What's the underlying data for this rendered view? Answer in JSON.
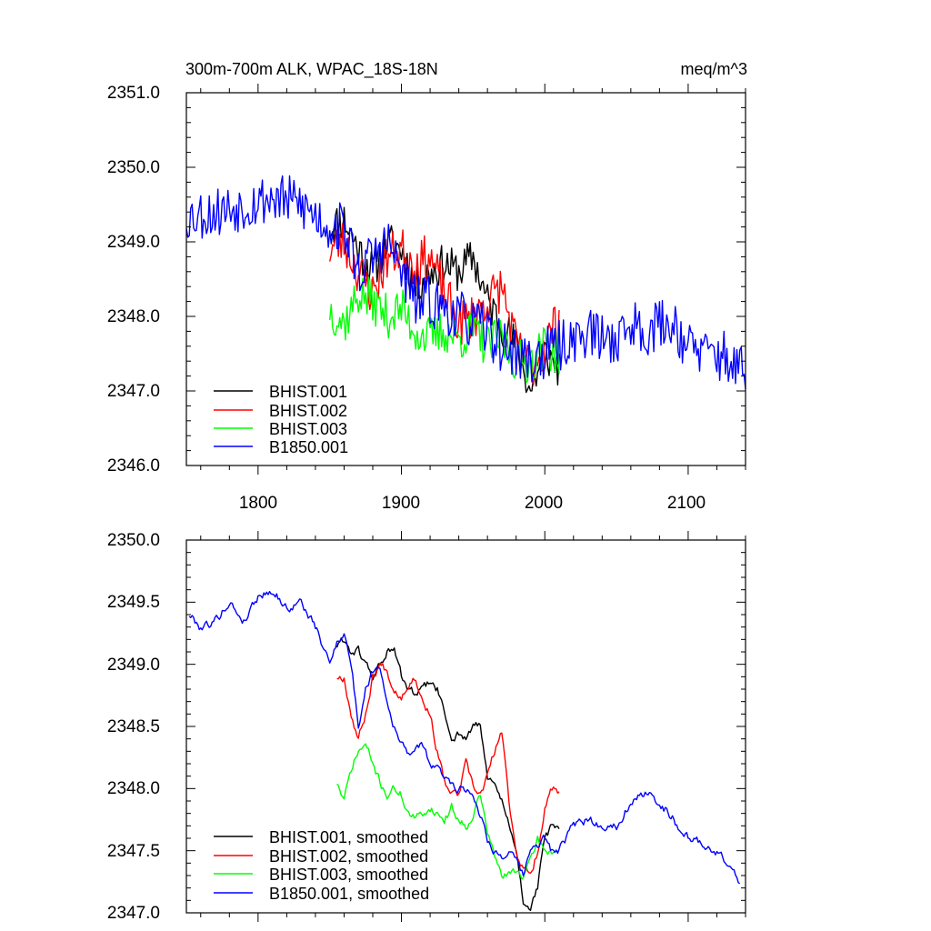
{
  "colors": {
    "black": "#000000",
    "red": "#ff0000",
    "green": "#00ff00",
    "blue": "#0000ff"
  },
  "chart_data": [
    {
      "type": "line",
      "title": "300m-700m ALK, WPAC_18S-18N",
      "units": "meq/m^3",
      "xlim": [
        1750,
        2140
      ],
      "ylim": [
        2346.0,
        2351.0
      ],
      "xticks": [
        1800,
        1900,
        2000,
        2100
      ],
      "xtick_labels": [
        "1800",
        "1900",
        "2000",
        "2100"
      ],
      "yticks": [
        2346.0,
        2347.0,
        2348.0,
        2349.0,
        2350.0,
        2351.0
      ],
      "ytick_labels": [
        "2346.0",
        "2347.0",
        "2348.0",
        "2349.0",
        "2350.0",
        "2351.0"
      ],
      "legend": [
        "BHIST.001",
        "BHIST.002",
        "BHIST.003",
        "B1850.001"
      ],
      "series": [
        {
          "name": "BHIST.001",
          "color": "#000000",
          "x": [
            1850,
            1860,
            1870,
            1880,
            1890,
            1900,
            1910,
            1920,
            1930,
            1940,
            1950,
            1960,
            1970,
            1980,
            1990,
            2000,
            2010
          ],
          "values": [
            2349.2,
            2349.3,
            2348.9,
            2348.6,
            2349.0,
            2348.9,
            2348.4,
            2348.6,
            2348.7,
            2348.6,
            2348.8,
            2348.2,
            2347.9,
            2347.6,
            2347.0,
            2347.5,
            2347.3
          ],
          "noise": 0.28,
          "seed": 11
        },
        {
          "name": "BHIST.002",
          "color": "#ff0000",
          "x": [
            1850,
            1860,
            1870,
            1880,
            1890,
            1900,
            1910,
            1920,
            1930,
            1940,
            1950,
            1960,
            1970,
            1980,
            1990,
            2000,
            2010
          ],
          "values": [
            2348.9,
            2349.0,
            2348.6,
            2348.3,
            2348.8,
            2348.9,
            2348.7,
            2348.8,
            2348.3,
            2347.9,
            2348.0,
            2348.2,
            2348.4,
            2347.6,
            2347.3,
            2347.6,
            2348.0
          ],
          "noise": 0.32,
          "seed": 23
        },
        {
          "name": "BHIST.003",
          "color": "#00ff00",
          "x": [
            1850,
            1860,
            1870,
            1880,
            1890,
            1900,
            1910,
            1920,
            1930,
            1940,
            1950,
            1960,
            1970,
            1980,
            1990,
            2000,
            2010
          ],
          "values": [
            2348.1,
            2347.9,
            2348.3,
            2348.2,
            2348.0,
            2348.1,
            2347.8,
            2347.7,
            2347.8,
            2347.7,
            2347.8,
            2347.6,
            2347.7,
            2347.4,
            2347.4,
            2347.6,
            2347.5
          ],
          "noise": 0.3,
          "seed": 37
        },
        {
          "name": "B1850.001",
          "color": "#0000ff",
          "x": [
            1750,
            1770,
            1790,
            1810,
            1830,
            1850,
            1860,
            1870,
            1880,
            1890,
            1900,
            1910,
            1920,
            1930,
            1940,
            1950,
            1960,
            1970,
            1980,
            1990,
            2000,
            2010,
            2020,
            2030,
            2040,
            2050,
            2060,
            2070,
            2080,
            2090,
            2100,
            2110,
            2120,
            2130,
            2140
          ],
          "values": [
            2349.35,
            2349.4,
            2349.5,
            2349.6,
            2349.5,
            2349.2,
            2349.2,
            2348.6,
            2348.8,
            2349.0,
            2348.6,
            2348.2,
            2348.2,
            2348.1,
            2348.0,
            2347.9,
            2347.8,
            2347.6,
            2347.5,
            2347.4,
            2347.5,
            2347.6,
            2347.7,
            2347.8,
            2347.7,
            2347.7,
            2347.9,
            2347.8,
            2347.9,
            2347.9,
            2347.6,
            2347.5,
            2347.5,
            2347.4,
            2347.2
          ],
          "noise": 0.35,
          "seed": 53
        }
      ]
    },
    {
      "type": "line",
      "title": "",
      "xlim": [
        1750,
        2140
      ],
      "ylim": [
        2347.0,
        2350.0
      ],
      "xticks": [
        1800,
        1900,
        2000,
        2100
      ],
      "yticks": [
        2347.0,
        2347.5,
        2348.0,
        2348.5,
        2349.0,
        2349.5,
        2350.0
      ],
      "ytick_labels": [
        "2347.0",
        "2347.5",
        "2348.0",
        "2348.5",
        "2349.0",
        "2349.5",
        "2350.0"
      ],
      "legend": [
        "BHIST.001, smoothed",
        "BHIST.002, smoothed",
        "BHIST.003, smoothed",
        "B1850.001, smoothed"
      ],
      "series": [
        {
          "name": "BHIST.001, smoothed",
          "color": "#000000",
          "x": [
            1855,
            1860,
            1865,
            1870,
            1875,
            1880,
            1885,
            1890,
            1895,
            1900,
            1905,
            1910,
            1915,
            1920,
            1925,
            1930,
            1935,
            1940,
            1945,
            1950,
            1955,
            1960,
            1965,
            1970,
            1975,
            1980,
            1985,
            1990,
            1995,
            2000,
            2005,
            2010
          ],
          "values": [
            2349.15,
            2349.2,
            2349.1,
            2349.1,
            2349.0,
            2348.9,
            2349.0,
            2349.1,
            2349.1,
            2348.9,
            2348.8,
            2348.75,
            2348.8,
            2348.85,
            2348.8,
            2348.6,
            2348.4,
            2348.45,
            2348.4,
            2348.5,
            2348.5,
            2348.1,
            2348.0,
            2347.9,
            2347.7,
            2347.5,
            2347.1,
            2347.05,
            2347.2,
            2347.6,
            2347.7,
            2347.65
          ],
          "noise": 0.03,
          "seed": 61
        },
        {
          "name": "BHIST.002, smoothed",
          "color": "#ff0000",
          "x": [
            1855,
            1860,
            1865,
            1870,
            1875,
            1880,
            1885,
            1890,
            1895,
            1900,
            1905,
            1910,
            1915,
            1920,
            1925,
            1930,
            1935,
            1940,
            1945,
            1950,
            1955,
            1960,
            1965,
            1970,
            1975,
            1980,
            1985,
            1990,
            1995,
            2000,
            2005,
            2010
          ],
          "values": [
            2348.9,
            2348.9,
            2348.6,
            2348.4,
            2348.6,
            2348.9,
            2349.0,
            2348.95,
            2348.8,
            2348.75,
            2348.85,
            2348.9,
            2348.7,
            2348.6,
            2348.3,
            2348.05,
            2347.95,
            2347.95,
            2348.2,
            2348.0,
            2347.95,
            2348.1,
            2348.3,
            2348.45,
            2347.9,
            2347.5,
            2347.35,
            2347.3,
            2347.5,
            2347.85,
            2348.0,
            2347.95
          ],
          "noise": 0.03,
          "seed": 67
        },
        {
          "name": "BHIST.003, smoothed",
          "color": "#00ff00",
          "x": [
            1855,
            1860,
            1865,
            1870,
            1875,
            1880,
            1885,
            1890,
            1895,
            1900,
            1905,
            1910,
            1915,
            1920,
            1925,
            1930,
            1935,
            1940,
            1945,
            1950,
            1955,
            1960,
            1965,
            1970,
            1975,
            1980,
            1985,
            1990,
            1995,
            2000,
            2005,
            2010
          ],
          "values": [
            2348.05,
            2347.9,
            2348.15,
            2348.3,
            2348.35,
            2348.2,
            2348.05,
            2347.95,
            2348.0,
            2347.95,
            2347.8,
            2347.75,
            2347.8,
            2347.85,
            2347.8,
            2347.75,
            2347.85,
            2347.75,
            2347.7,
            2347.8,
            2347.95,
            2347.65,
            2347.45,
            2347.3,
            2347.3,
            2347.35,
            2347.3,
            2347.4,
            2347.6,
            2347.5,
            2347.5,
            2347.5
          ],
          "noise": 0.03,
          "seed": 71
        },
        {
          "name": "B1850.001, smoothed",
          "color": "#0000ff",
          "x": [
            1752,
            1760,
            1770,
            1780,
            1790,
            1800,
            1810,
            1820,
            1830,
            1840,
            1850,
            1855,
            1860,
            1865,
            1870,
            1875,
            1880,
            1885,
            1890,
            1895,
            1900,
            1905,
            1910,
            1915,
            1920,
            1925,
            1930,
            1935,
            1940,
            1945,
            1950,
            1955,
            1960,
            1965,
            1970,
            1975,
            1980,
            1985,
            1990,
            1995,
            2000,
            2005,
            2010,
            2020,
            2030,
            2040,
            2050,
            2060,
            2070,
            2080,
            2090,
            2100,
            2110,
            2120,
            2130,
            2136
          ],
          "values": [
            2349.4,
            2349.3,
            2349.35,
            2349.5,
            2349.35,
            2349.55,
            2349.6,
            2349.45,
            2349.5,
            2349.3,
            2349.0,
            2349.2,
            2349.25,
            2349.0,
            2348.5,
            2348.8,
            2348.95,
            2349.0,
            2348.7,
            2348.5,
            2348.35,
            2348.3,
            2348.3,
            2348.35,
            2348.2,
            2348.15,
            2348.1,
            2348.05,
            2348.0,
            2348.0,
            2347.95,
            2347.8,
            2347.6,
            2347.5,
            2347.45,
            2347.5,
            2347.4,
            2347.3,
            2347.5,
            2347.55,
            2347.6,
            2347.5,
            2347.5,
            2347.7,
            2347.75,
            2347.7,
            2347.7,
            2347.9,
            2347.95,
            2347.9,
            2347.75,
            2347.6,
            2347.55,
            2347.5,
            2347.35,
            2347.25
          ],
          "noise": 0.03,
          "seed": 79
        }
      ]
    }
  ]
}
